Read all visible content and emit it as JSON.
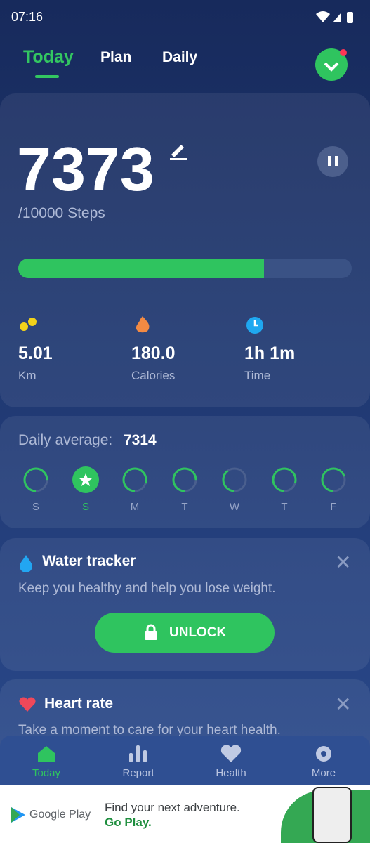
{
  "status_bar": {
    "time": "07:16"
  },
  "tabs": [
    "Today",
    "Plan",
    "Daily"
  ],
  "steps_card": {
    "steps": 7373,
    "goal": {
      "value": 10000,
      "label": "/10000 Steps"
    },
    "stats": [
      {
        "value": "5.01",
        "label": "Km"
      },
      {
        "value": "180.0",
        "label": "Calories"
      },
      {
        "value": "1h 1m",
        "label": "Time"
      }
    ]
  },
  "daily_card": {
    "label": "Daily average:",
    "value": "7314",
    "days": [
      "S",
      "S",
      "M",
      "T",
      "W",
      "T",
      "F"
    ],
    "progress": [
      75,
      100,
      80,
      75,
      40,
      80,
      70
    ]
  },
  "water_card": {
    "title": "Water tracker",
    "text": "Keep you healthy and help you lose weight.",
    "button": "UNLOCK"
  },
  "heart_card": {
    "title": "Heart rate",
    "text": "Take a moment to care for your heart health."
  },
  "nav": [
    "Today",
    "Report",
    "Health",
    "More"
  ],
  "ad": {
    "brand": "Google Play",
    "line1": "Find your next adventure.",
    "line2": "Go Play."
  }
}
